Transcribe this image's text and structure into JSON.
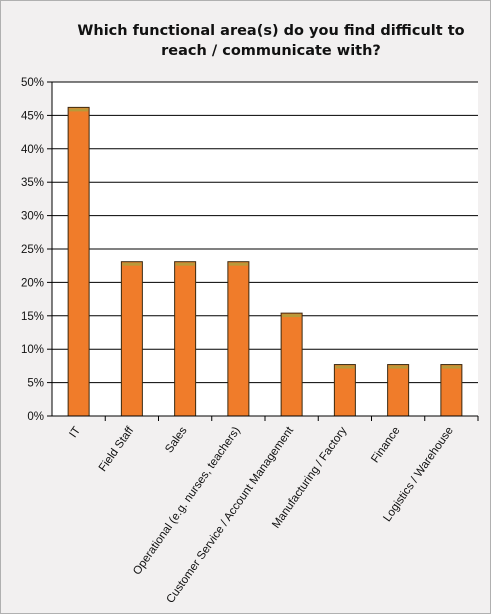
{
  "chart_data": {
    "type": "bar",
    "title": "Which functional area(s) do you find difficult to reach / communicate with?",
    "categories": [
      "IT",
      "Field Staff",
      "Sales",
      "Operational (e.g. nurses, teachers)",
      "Customer Service / Account Management",
      "Manufacturing / Factory",
      "Finance",
      "Logistics / Warehouse"
    ],
    "values": [
      46.2,
      23.1,
      23.1,
      23.1,
      15.4,
      7.7,
      7.7,
      7.7
    ],
    "ylim": [
      0,
      50
    ],
    "yticks": [
      "0%",
      "5%",
      "10%",
      "15%",
      "20%",
      "25%",
      "30%",
      "35%",
      "40%",
      "45%",
      "50%"
    ],
    "xlabel": "",
    "ylabel": "",
    "grid": true,
    "bar_color": "#f07c2a",
    "bar_top_color": "#b89a3a"
  }
}
